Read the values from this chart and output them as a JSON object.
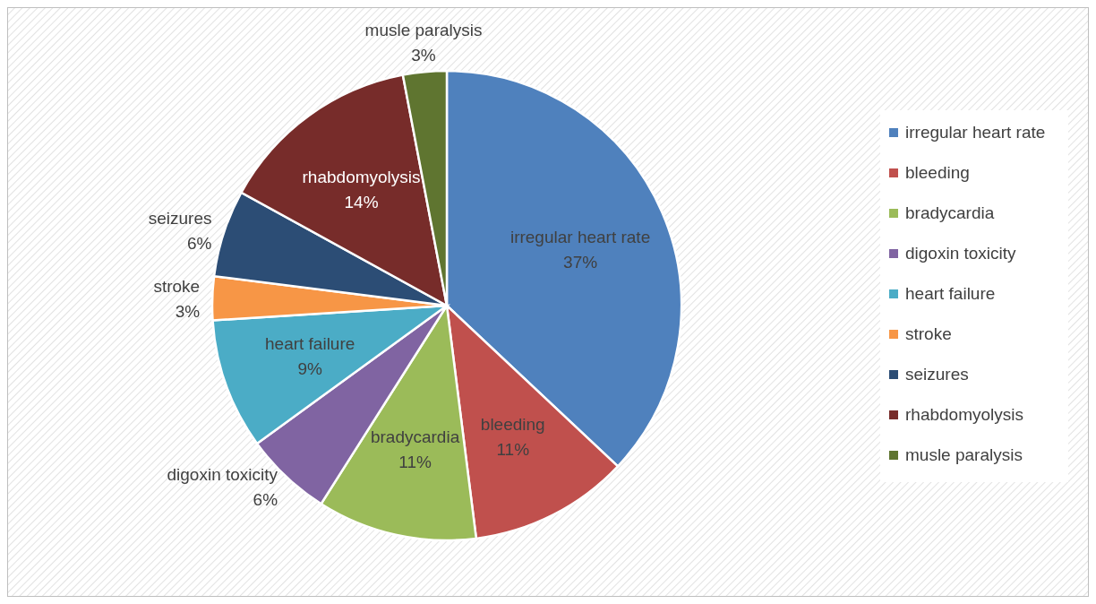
{
  "chart_data": {
    "type": "pie",
    "categories": [
      "irregular heart rate",
      "bleeding",
      "bradycardia",
      "digoxin toxicity",
      "heart failure",
      "stroke",
      "seizures",
      "rhabdomyolysis",
      "musle paralysis"
    ],
    "values": [
      37,
      11,
      11,
      6,
      9,
      3,
      6,
      14,
      3
    ],
    "value_labels": [
      "37%",
      "11%",
      "11%",
      "6%",
      "9%",
      "3%",
      "6%",
      "14%",
      "3%"
    ],
    "colors": [
      "#4f81bd",
      "#c0504d",
      "#9bbb59",
      "#8064a2",
      "#4bacc6",
      "#f79646",
      "#2c4d75",
      "#772c2a",
      "#5f7530"
    ],
    "legend": "right"
  }
}
